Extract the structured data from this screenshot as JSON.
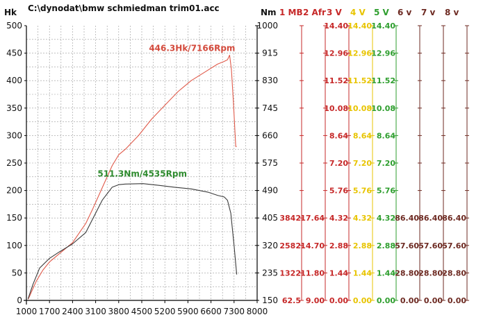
{
  "header": {
    "file_title": "C:\\dynodat\\bmw schmiedman trim01.acc",
    "left_unit": "Hk",
    "right_unit": "Nm"
  },
  "channels": {
    "headers": [
      "1 MB",
      "2 Afr",
      "3 V",
      "4 V",
      "5 V",
      "6 v",
      "7 v",
      "8 v"
    ],
    "colors": [
      "#c62828",
      "#c62828",
      "#c62828",
      "#e8c400",
      "#2e9e2e",
      "#6d2a22",
      "#6d2a22",
      "#6d2a22"
    ],
    "rows": [
      [
        "",
        "",
        "14.40",
        "14.40",
        "14.40",
        "",
        "",
        ""
      ],
      [
        "",
        "",
        "12.96",
        "12.96",
        "12.96",
        "",
        "",
        ""
      ],
      [
        "",
        "",
        "11.52",
        "11.52",
        "11.52",
        "",
        "",
        ""
      ],
      [
        "",
        "",
        "10.08",
        "10.08",
        "10.08",
        "",
        "",
        ""
      ],
      [
        "",
        "",
        "8.64",
        "8.64",
        "8.64",
        "",
        "",
        ""
      ],
      [
        "",
        "",
        "7.20",
        "7.20",
        "7.20",
        "",
        "",
        ""
      ],
      [
        "",
        "",
        "5.76",
        "5.76",
        "5.76",
        "",
        "",
        ""
      ],
      [
        "3842",
        "17.64",
        "4.32",
        "4.32",
        "4.32",
        "86.40",
        "86.40",
        "86.40"
      ],
      [
        "2582",
        "14.70",
        "2.88",
        "2.88",
        "2.88",
        "57.60",
        "57.60",
        "57.60"
      ],
      [
        "1322",
        "11.80",
        "1.44",
        "1.44",
        "1.44",
        "28.80",
        "28.80",
        "28.80"
      ],
      [
        "62.5",
        "9.00",
        "0.00",
        "0.00",
        "0.00",
        "0.00",
        "0.00",
        "0.00"
      ]
    ]
  },
  "colors": {
    "power": "#e05a4a",
    "torque": "#3a3a3a",
    "power_label": "#d34a3c",
    "torque_label": "#2e8b2e",
    "grid": "#9a9a9a",
    "axis": "#000000"
  },
  "chart_data": {
    "type": "line",
    "xlabel": "",
    "ylabel": "Hk",
    "y2label": "Nm",
    "xlim": [
      1000,
      8000
    ],
    "ylim": [
      0,
      500
    ],
    "y2lim": [
      150,
      1000
    ],
    "x_ticks": [
      "1000",
      "1700",
      "2400",
      "3100",
      "3800",
      "4500",
      "5200",
      "5900",
      "6600",
      "7300",
      "8000"
    ],
    "y_ticks": [
      "0",
      "50",
      "100",
      "150",
      "200",
      "250",
      "300",
      "350",
      "400",
      "450",
      "500"
    ],
    "y2_ticks": [
      "150",
      "235",
      "320",
      "405",
      "490",
      "575",
      "660",
      "745",
      "830",
      "915",
      "1000"
    ],
    "grid": true,
    "series": [
      {
        "name": "Hk",
        "axis": "left",
        "x": [
          1050,
          1100,
          1200,
          1300,
          1500,
          1700,
          2000,
          2400,
          2800,
          3000,
          3300,
          3600,
          3800,
          4000,
          4400,
          4800,
          5200,
          5600,
          6000,
          6400,
          6800,
          7000,
          7100,
          7166,
          7220,
          7280,
          7350,
          7380
        ],
        "values": [
          2,
          8,
          22,
          35,
          55,
          70,
          85,
          105,
          140,
          165,
          205,
          245,
          265,
          275,
          300,
          330,
          355,
          380,
          400,
          415,
          430,
          435,
          438,
          446.3,
          420,
          360,
          280,
          280
        ]
      },
      {
        "name": "Nm",
        "axis": "right",
        "x": [
          1050,
          1200,
          1400,
          1700,
          2000,
          2400,
          2800,
          3000,
          3300,
          3600,
          3800,
          4000,
          4535,
          5000,
          5500,
          6000,
          6500,
          6800,
          7000,
          7100,
          7200,
          7300,
          7380
        ],
        "values": [
          155,
          200,
          250,
          280,
          300,
          325,
          360,
          400,
          460,
          500,
          508,
          510,
          511.3,
          506,
          500,
          495,
          485,
          475,
          470,
          460,
          420,
          320,
          230
        ]
      }
    ],
    "annotations": [
      {
        "text": "446.3Hk/7166Rpm",
        "x": 7166,
        "y": 446.3,
        "series": "Hk"
      },
      {
        "text": "511.3Nm/4535Rpm",
        "x": 4535,
        "y": 511.3,
        "series": "Nm"
      }
    ]
  }
}
